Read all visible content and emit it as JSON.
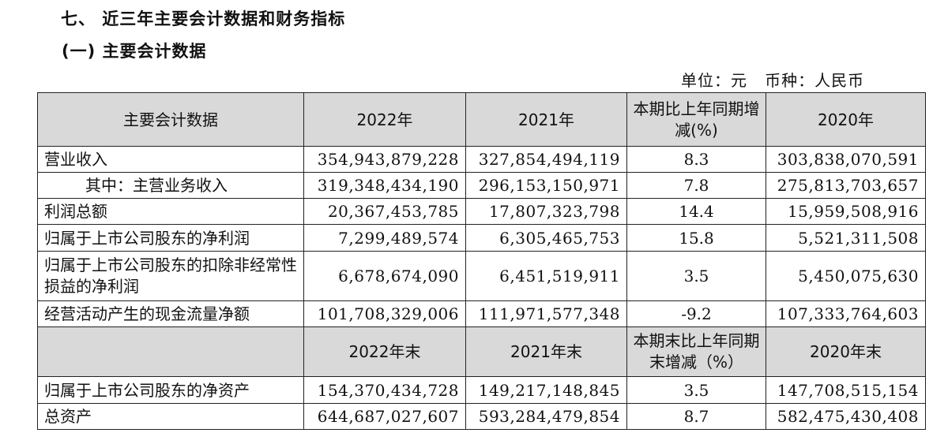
{
  "heading": "七、 近三年主要会计数据和财务指标",
  "subheading": "(一) 主要会计数据",
  "unit_note": "单位：元   币种：人民币",
  "header1": {
    "label": "主要会计数据",
    "y1": "2022年",
    "y2": "2021年",
    "change": "本期比上年同期增减(%)",
    "y3": "2020年"
  },
  "rows1": [
    {
      "label": "营业收入",
      "y2022": "354,943,879,228",
      "y2021": "327,854,494,119",
      "change": "8.3",
      "y2020": "303,838,070,591"
    },
    {
      "label": "其中：主营业务收入",
      "y2022": "319,348,434,190",
      "y2021": "296,153,150,971",
      "change": "7.8",
      "y2020": "275,813,703,657"
    },
    {
      "label": "利润总额",
      "y2022": "20,367,453,785",
      "y2021": "17,807,323,798",
      "change": "14.4",
      "y2020": "15,959,508,916"
    },
    {
      "label": "归属于上市公司股东的净利润",
      "y2022": "7,299,489,574",
      "y2021": "6,305,465,753",
      "change": "15.8",
      "y2020": "5,521,311,508"
    },
    {
      "label": "归属于上市公司股东的扣除非经常性损益的净利润",
      "y2022": "6,678,674,090",
      "y2021": "6,451,519,911",
      "change": "3.5",
      "y2020": "5,450,075,630"
    },
    {
      "label": "经营活动产生的现金流量净额",
      "y2022": "101,708,329,006",
      "y2021": "111,971,577,348",
      "change": "-9.2",
      "y2020": "107,333,764,603"
    }
  ],
  "header2": {
    "label": "",
    "y1": "2022年末",
    "y2": "2021年末",
    "change": "本期末比上年同期末增减（%）",
    "y3": "2020年末"
  },
  "rows2": [
    {
      "label": "归属于上市公司股东的净资产",
      "y2022": "154,370,434,728",
      "y2021": "149,217,148,845",
      "change": "3.5",
      "y2020": "147,708,515,154"
    },
    {
      "label": "总资产",
      "y2022": "644,687,027,607",
      "y2021": "593,284,479,854",
      "change": "8.7",
      "y2020": "582,475,430,408"
    }
  ]
}
